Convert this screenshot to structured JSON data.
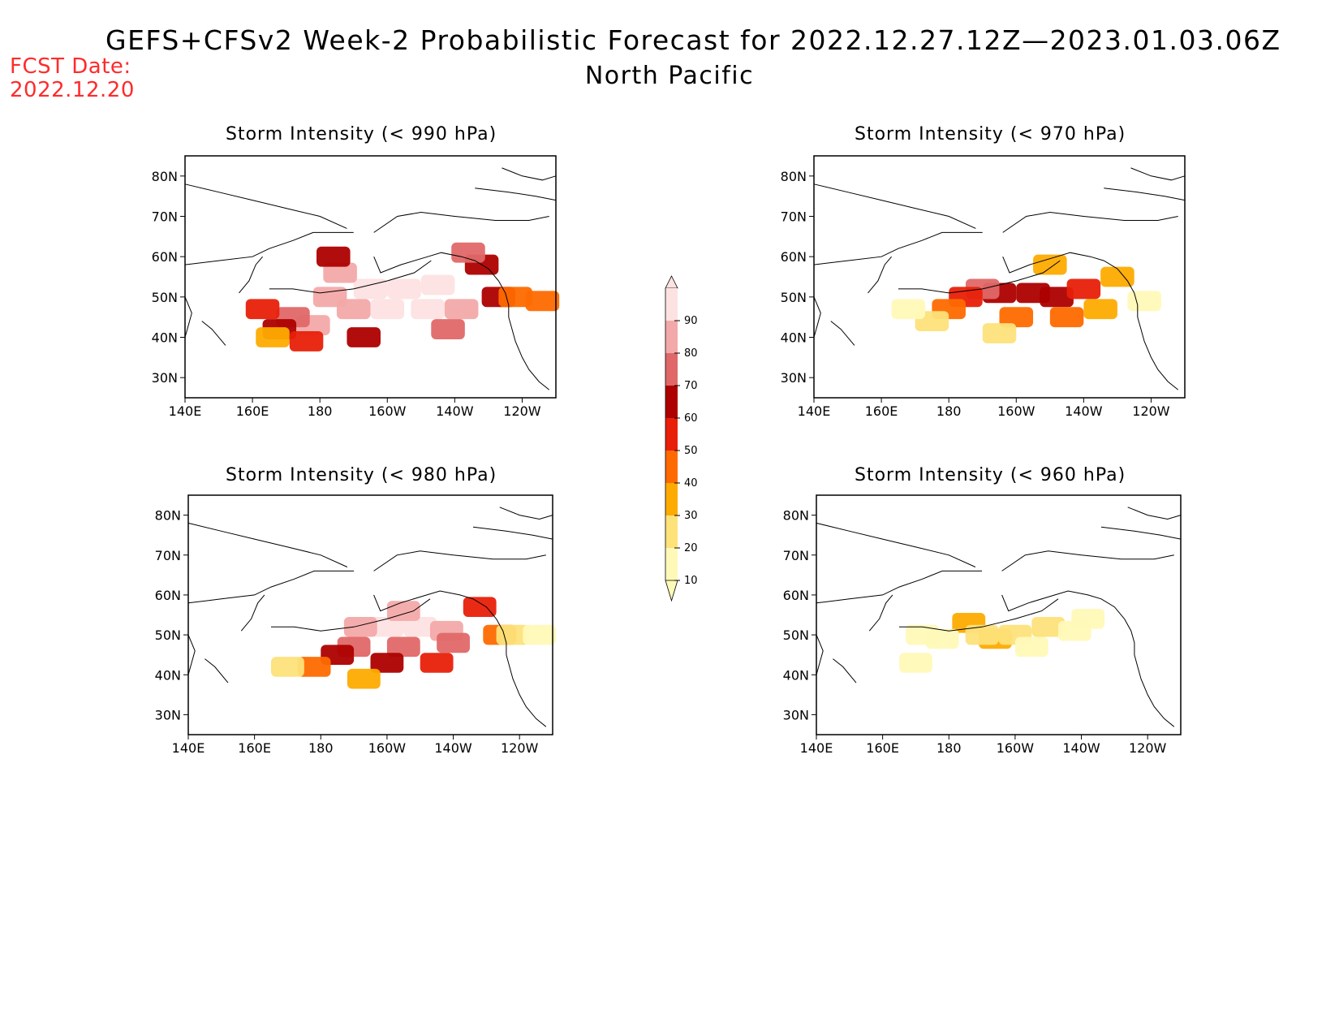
{
  "header": {
    "title": "GEFS+CFSv2 Week-2 Probabilistic Forecast for 2022.12.27.12Z—2023.01.03.06Z",
    "region": "North Pacific",
    "fcst_label": "FCST Date:",
    "fcst_date": "2022.12.20"
  },
  "colors": {
    "fcst_text": "#ff2b2b",
    "scale": [
      "#fff9b8",
      "#fde27a",
      "#fdab00",
      "#fe6a00",
      "#e8200a",
      "#ad0000",
      "#e06868",
      "#f3a9a9",
      "#fde2e2"
    ]
  },
  "colorbar": {
    "labels": [
      "10",
      "20",
      "30",
      "40",
      "50",
      "60",
      "70",
      "80",
      "90"
    ]
  },
  "axes": {
    "lat_labels": [
      "80N",
      "70N",
      "60N",
      "50N",
      "40N",
      "30N"
    ],
    "lon_labels": [
      "140E",
      "160E",
      "180",
      "160W",
      "140W",
      "120W"
    ]
  },
  "panels": [
    {
      "id": "p990",
      "title": "Storm Intensity (< 990 hPa)"
    },
    {
      "id": "p970",
      "title": "Storm Intensity (< 970 hPa)"
    },
    {
      "id": "p980",
      "title": "Storm Intensity (< 980 hPa)"
    },
    {
      "id": "p960",
      "title": "Storm Intensity (< 960 hPa)"
    }
  ],
  "chart_data": [
    {
      "type": "heatmap",
      "title": "Storm Intensity (< 990 hPa)",
      "xlim": [
        "140E",
        "110W"
      ],
      "ylim": [
        25,
        85
      ],
      "levels": [
        10,
        20,
        30,
        40,
        50,
        60,
        70,
        80,
        90
      ],
      "cells": [
        {
          "lon": 195,
          "lat": 52,
          "p": 95
        },
        {
          "lon": 205,
          "lat": 52,
          "p": 95
        },
        {
          "lon": 215,
          "lat": 53,
          "p": 95
        },
        {
          "lon": 200,
          "lat": 47,
          "p": 90
        },
        {
          "lon": 190,
          "lat": 47,
          "p": 85
        },
        {
          "lon": 212,
          "lat": 47,
          "p": 90
        },
        {
          "lon": 183,
          "lat": 50,
          "p": 85
        },
        {
          "lon": 178,
          "lat": 43,
          "p": 80
        },
        {
          "lon": 222,
          "lat": 47,
          "p": 85
        },
        {
          "lon": 186,
          "lat": 56,
          "p": 85
        },
        {
          "lon": 172,
          "lat": 45,
          "p": 75
        },
        {
          "lon": 168,
          "lat": 42,
          "p": 60
        },
        {
          "lon": 166,
          "lat": 40,
          "p": 30
        },
        {
          "lon": 176,
          "lat": 39,
          "p": 55
        },
        {
          "lon": 193,
          "lat": 40,
          "p": 65
        },
        {
          "lon": 218,
          "lat": 42,
          "p": 70
        },
        {
          "lon": 228,
          "lat": 58,
          "p": 60
        },
        {
          "lon": 224,
          "lat": 61,
          "p": 70
        },
        {
          "lon": 233,
          "lat": 50,
          "p": 60
        },
        {
          "lon": 238,
          "lat": 50,
          "p": 45
        },
        {
          "lon": 246,
          "lat": 49,
          "p": 45
        },
        {
          "lon": 163,
          "lat": 47,
          "p": 55
        },
        {
          "lon": 184,
          "lat": 60,
          "p": 60
        }
      ]
    },
    {
      "type": "heatmap",
      "title": "Storm Intensity (< 970 hPa)",
      "xlim": [
        "140E",
        "110W"
      ],
      "ylim": [
        25,
        85
      ],
      "levels": [
        10,
        20,
        30,
        40,
        50,
        60,
        70,
        80,
        90
      ],
      "cells": [
        {
          "lon": 195,
          "lat": 51,
          "p": 65
        },
        {
          "lon": 205,
          "lat": 51,
          "p": 65
        },
        {
          "lon": 190,
          "lat": 52,
          "p": 75
        },
        {
          "lon": 212,
          "lat": 50,
          "p": 60
        },
        {
          "lon": 220,
          "lat": 52,
          "p": 55
        },
        {
          "lon": 185,
          "lat": 50,
          "p": 55
        },
        {
          "lon": 180,
          "lat": 47,
          "p": 45
        },
        {
          "lon": 200,
          "lat": 45,
          "p": 45
        },
        {
          "lon": 215,
          "lat": 45,
          "p": 40
        },
        {
          "lon": 225,
          "lat": 47,
          "p": 30
        },
        {
          "lon": 175,
          "lat": 44,
          "p": 25
        },
        {
          "lon": 195,
          "lat": 41,
          "p": 25
        },
        {
          "lon": 230,
          "lat": 55,
          "p": 30
        },
        {
          "lon": 210,
          "lat": 58,
          "p": 35
        },
        {
          "lon": 168,
          "lat": 47,
          "p": 15
        },
        {
          "lon": 238,
          "lat": 49,
          "p": 15
        }
      ]
    },
    {
      "type": "heatmap",
      "title": "Storm Intensity (< 980 hPa)",
      "xlim": [
        "140E",
        "110W"
      ],
      "ylim": [
        25,
        85
      ],
      "levels": [
        10,
        20,
        30,
        40,
        50,
        60,
        70,
        80,
        90
      ],
      "cells": [
        {
          "lon": 200,
          "lat": 52,
          "p": 90
        },
        {
          "lon": 210,
          "lat": 52,
          "p": 90
        },
        {
          "lon": 192,
          "lat": 52,
          "p": 85
        },
        {
          "lon": 218,
          "lat": 51,
          "p": 85
        },
        {
          "lon": 205,
          "lat": 56,
          "p": 80
        },
        {
          "lon": 190,
          "lat": 47,
          "p": 75
        },
        {
          "lon": 205,
          "lat": 47,
          "p": 75
        },
        {
          "lon": 220,
          "lat": 48,
          "p": 70
        },
        {
          "lon": 185,
          "lat": 45,
          "p": 65
        },
        {
          "lon": 200,
          "lat": 43,
          "p": 60
        },
        {
          "lon": 215,
          "lat": 43,
          "p": 55
        },
        {
          "lon": 178,
          "lat": 42,
          "p": 45
        },
        {
          "lon": 228,
          "lat": 57,
          "p": 55
        },
        {
          "lon": 170,
          "lat": 42,
          "p": 25
        },
        {
          "lon": 193,
          "lat": 39,
          "p": 30
        },
        {
          "lon": 234,
          "lat": 50,
          "p": 40
        },
        {
          "lon": 238,
          "lat": 50,
          "p": 25
        },
        {
          "lon": 246,
          "lat": 50,
          "p": 15
        }
      ]
    },
    {
      "type": "heatmap",
      "title": "Storm Intensity (< 960 hPa)",
      "xlim": [
        "140E",
        "110W"
      ],
      "ylim": [
        25,
        85
      ],
      "levels": [
        10,
        20,
        30,
        40,
        50,
        60,
        70,
        80,
        90
      ],
      "cells": [
        {
          "lon": 186,
          "lat": 53,
          "p": 35
        },
        {
          "lon": 194,
          "lat": 49,
          "p": 30
        },
        {
          "lon": 190,
          "lat": 50,
          "p": 20
        },
        {
          "lon": 200,
          "lat": 50,
          "p": 20
        },
        {
          "lon": 210,
          "lat": 52,
          "p": 22
        },
        {
          "lon": 218,
          "lat": 51,
          "p": 18
        },
        {
          "lon": 222,
          "lat": 54,
          "p": 15
        },
        {
          "lon": 205,
          "lat": 47,
          "p": 15
        },
        {
          "lon": 178,
          "lat": 49,
          "p": 12
        },
        {
          "lon": 172,
          "lat": 50,
          "p": 12
        },
        {
          "lon": 170,
          "lat": 43,
          "p": 10
        }
      ]
    }
  ]
}
